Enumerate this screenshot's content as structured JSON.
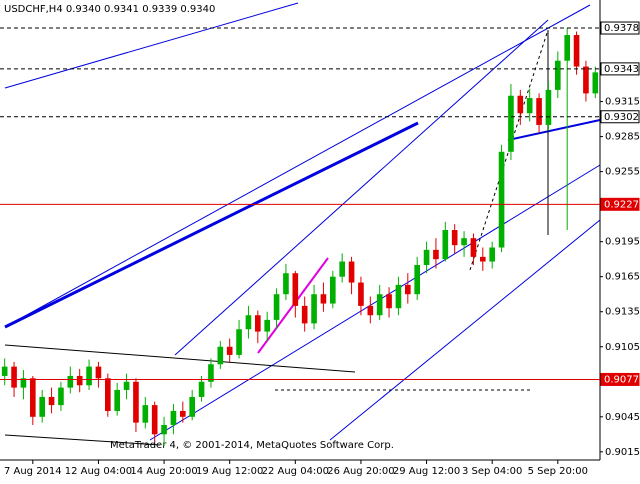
{
  "chart_data": {
    "type": "candlestick",
    "title": "USDCHF,H4  0.9340 0.9341 0.9339 0.9340",
    "watermark": "MetaTrader 4, © 2001-2014, MetaQuotes Software Corp.",
    "categories": [
      null,
      null,
      null,
      "7 Aug 2014",
      null,
      null,
      null,
      null,
      null,
      null,
      "12 Aug 04:00",
      null,
      null,
      null,
      null,
      null,
      null,
      "14 Aug 20:00",
      null,
      null,
      null,
      null,
      null,
      null,
      "19 Aug 12:00",
      null,
      null,
      null,
      null,
      null,
      null,
      "22 Aug 04:00",
      null,
      null,
      null,
      null,
      null,
      null,
      "26 Aug 20:00",
      null,
      null,
      null,
      null,
      null,
      null,
      "29 Aug 12:00",
      null,
      null,
      null,
      null,
      null,
      null,
      "3 Sep 04:00",
      null,
      null,
      null,
      null,
      null,
      null,
      "5 Sep 20:00",
      null,
      null,
      null,
      null
    ],
    "open": [
      0.908,
      0.9088,
      0.907,
      0.9078,
      0.9045,
      0.9062,
      0.9055,
      0.907,
      0.908,
      0.9072,
      0.9088,
      0.9078,
      0.905,
      0.9068,
      0.9075,
      0.904,
      0.9055,
      0.903,
      0.9038,
      0.905,
      0.9045,
      0.9062,
      0.9075,
      0.909,
      0.9105,
      0.9098,
      0.912,
      0.9132,
      0.9118,
      0.9128,
      0.915,
      0.9168,
      0.914,
      0.9125,
      0.915,
      0.9142,
      0.9165,
      0.9178,
      0.916,
      0.914,
      0.9132,
      0.915,
      0.9138,
      0.9158,
      0.915,
      0.9175,
      0.9188,
      0.918,
      0.9205,
      0.9192,
      0.9198,
      0.9182,
      0.9178,
      0.919,
      0.9272,
      0.932,
      0.9305,
      0.9318,
      0.9295,
      0.9325,
      0.935,
      0.9372,
      0.9345,
      0.9322
    ],
    "high": [
      0.9095,
      0.9092,
      0.9085,
      0.908,
      0.9068,
      0.907,
      0.9075,
      0.9088,
      0.9086,
      0.9094,
      0.9092,
      0.9082,
      0.9074,
      0.9082,
      0.9078,
      0.9062,
      0.9058,
      0.9045,
      0.9056,
      0.9058,
      0.9068,
      0.908,
      0.9095,
      0.911,
      0.9112,
      0.9128,
      0.914,
      0.9136,
      0.9135,
      0.9155,
      0.9176,
      0.917,
      0.9148,
      0.9158,
      0.916,
      0.917,
      0.9185,
      0.9182,
      0.9165,
      0.9148,
      0.9158,
      0.9156,
      0.9165,
      0.9168,
      0.9182,
      0.9195,
      0.9198,
      0.9212,
      0.921,
      0.9204,
      0.9202,
      0.919,
      0.9195,
      0.9278,
      0.933,
      0.9325,
      0.9326,
      0.9322,
      0.9332,
      0.9358,
      0.9378,
      0.9375,
      0.935,
      0.9345
    ],
    "low": [
      0.9072,
      0.9062,
      0.906,
      0.9038,
      0.904,
      0.9048,
      0.905,
      0.9065,
      0.9066,
      0.9068,
      0.907,
      0.9045,
      0.9046,
      0.906,
      0.9032,
      0.9035,
      0.9024,
      0.902,
      0.903,
      0.904,
      0.9042,
      0.9058,
      0.907,
      0.9086,
      0.9092,
      0.9095,
      0.9112,
      0.9108,
      0.911,
      0.912,
      0.9145,
      0.913,
      0.9118,
      0.912,
      0.9135,
      0.9138,
      0.916,
      0.915,
      0.9132,
      0.9125,
      0.9128,
      0.913,
      0.9132,
      0.9142,
      0.9145,
      0.9168,
      0.9172,
      0.9178,
      0.9185,
      0.9182,
      0.9175,
      0.917,
      0.9172,
      0.9186,
      0.9265,
      0.9295,
      0.9298,
      0.9288,
      0.929,
      0.9318,
      0.9205,
      0.9338,
      0.9315,
      0.9318
    ],
    "close": [
      0.9088,
      0.907,
      0.9078,
      0.9045,
      0.9062,
      0.9055,
      0.907,
      0.908,
      0.9072,
      0.9088,
      0.9078,
      0.905,
      0.9068,
      0.9075,
      0.904,
      0.9055,
      0.903,
      0.9038,
      0.905,
      0.9045,
      0.9062,
      0.9075,
      0.909,
      0.9105,
      0.9098,
      0.912,
      0.9132,
      0.9118,
      0.9128,
      0.915,
      0.9168,
      0.914,
      0.9125,
      0.915,
      0.9142,
      0.9165,
      0.9178,
      0.916,
      0.914,
      0.9132,
      0.915,
      0.9138,
      0.9158,
      0.915,
      0.9175,
      0.9188,
      0.918,
      0.9205,
      0.9192,
      0.9198,
      0.9182,
      0.9178,
      0.919,
      0.9272,
      0.932,
      0.9305,
      0.9318,
      0.9295,
      0.9325,
      0.935,
      0.9372,
      0.9345,
      0.9322,
      0.934
    ],
    "up_color": "#00b000",
    "down_color": "#e00000",
    "ylim": [
      0.9008,
      0.9402
    ],
    "yticks": [
      0.9015,
      0.9045,
      0.9105,
      0.9135,
      0.9165,
      0.9195,
      0.9255,
      0.9285,
      0.9315
    ],
    "levels": [
      {
        "value": 0.9378,
        "color": "#000000",
        "dashed": true
      },
      {
        "value": 0.9343,
        "color": "#000000",
        "dashed": true
      },
      {
        "value": 0.9302,
        "color": "#000000",
        "dashed": true
      },
      {
        "value": 0.9227,
        "color": "#e00000",
        "dashed": false
      },
      {
        "value": 0.9077,
        "color": "#e00000",
        "dashed": false
      }
    ]
  }
}
